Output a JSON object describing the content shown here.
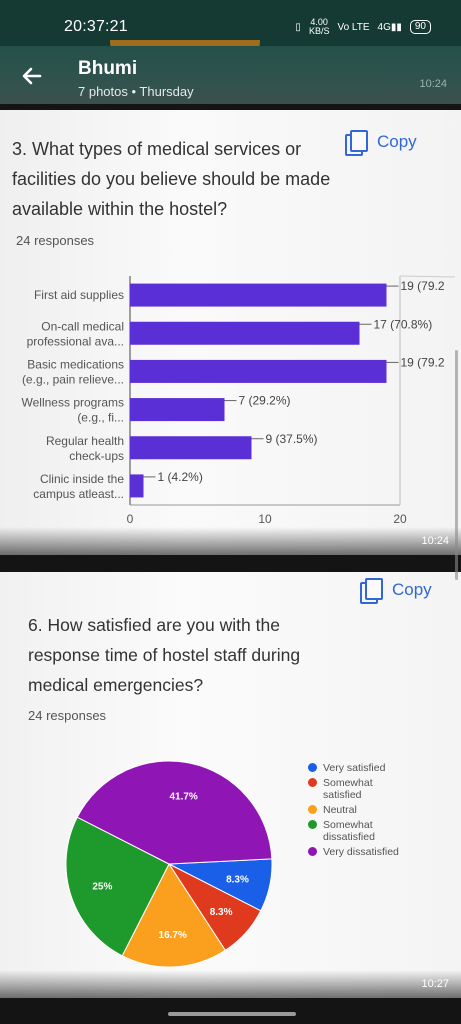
{
  "status": {
    "time": "20:37:21",
    "speed_top": "4.00",
    "speed_bottom": "KB/S",
    "network": "Vo LTE",
    "signal": "4G",
    "battery": "90"
  },
  "header": {
    "title": "Bhumi",
    "subtitle": "7 photos • Thursday",
    "timestamp": "10:24"
  },
  "q3": {
    "copy_label": "Copy",
    "question": "3. What types of medical services or facilities do you believe should be made available within the hostel?",
    "responses": "24 responses",
    "timestamp": "10:24",
    "chart_data": {
      "type": "bar",
      "categories": [
        "First aid supplies",
        "On-call medical professional ava...",
        "Basic medications (e.g., pain relieve...",
        "Wellness programs (e.g., fi...",
        "Regular health check-ups",
        "Clinic inside the campus atleast..."
      ],
      "values": [
        19,
        17,
        19,
        7,
        9,
        1
      ],
      "data_labels": [
        "19 (79.2",
        "17 (70.8%)",
        "19 (79.2",
        "7 (29.2%)",
        "9 (37.5%)",
        "1 (4.2%)"
      ],
      "xticks": [
        "0",
        "10",
        "20"
      ],
      "xlim": [
        0,
        20
      ],
      "color": "#5a2fd6"
    }
  },
  "q6": {
    "copy_label": "Copy",
    "question": "6. How satisfied are you with the response time of hostel staff during medical emergencies?",
    "responses": "24 responses",
    "timestamp": "10:27",
    "chart_data": {
      "type": "pie",
      "labels": [
        "Very satisfied",
        "Somewhat satisfied",
        "Neutral",
        "Somewhat dissatisfied",
        "Very dissatisfied"
      ],
      "values": [
        8.3,
        8.3,
        16.7,
        25,
        41.7
      ],
      "display": [
        "8.3%",
        "8.3%",
        "16.7%",
        "25%",
        "41.7%"
      ],
      "colors": [
        "#1a5fe8",
        "#e03a1e",
        "#fba01e",
        "#1e9a2c",
        "#8f16b5"
      ]
    }
  }
}
